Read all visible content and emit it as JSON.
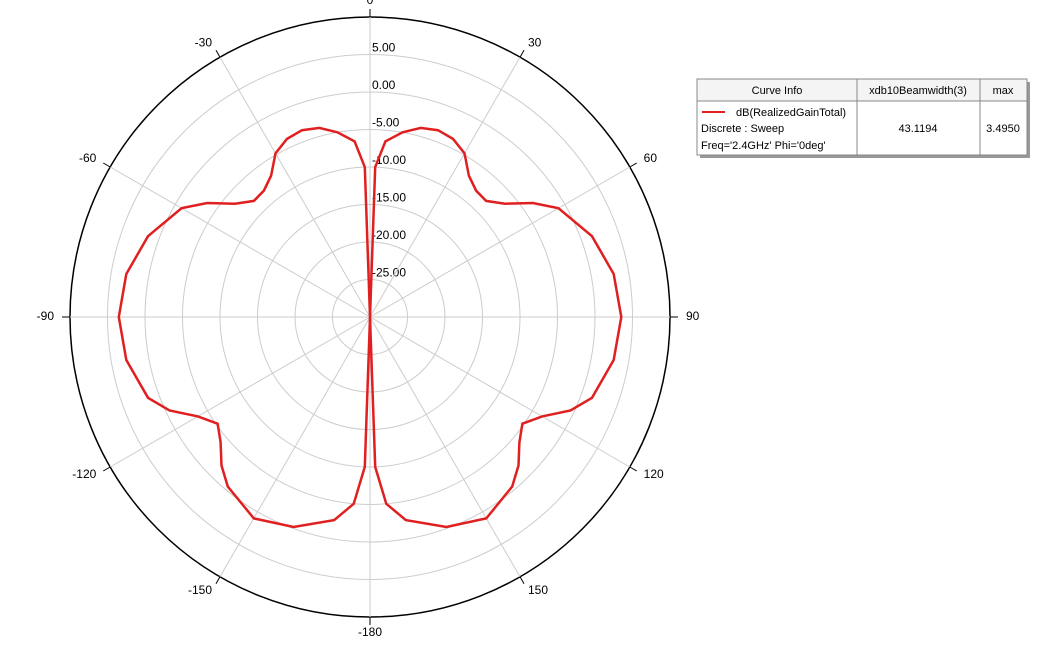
{
  "chart_data": {
    "type": "polar",
    "x": [
      -180,
      -178,
      -175,
      -170,
      -160,
      -150,
      -140,
      -135,
      -130,
      -125,
      -120,
      -115,
      -110,
      -100,
      -90,
      -80,
      -70,
      -60,
      -55,
      -50,
      -45,
      -40,
      -35,
      -30,
      -25,
      -20,
      -15,
      -10,
      -5,
      -2,
      0,
      2,
      5,
      10,
      15,
      20,
      25,
      30,
      35,
      40,
      45,
      50,
      55,
      60,
      70,
      80,
      90,
      100,
      110,
      115,
      120,
      125,
      130,
      135,
      140,
      150,
      160,
      170,
      175,
      178,
      180
    ],
    "series": [
      {
        "name": "dB(RealizedGainTotal)",
        "color": "#e02020",
        "values": [
          -30,
          -10,
          -5,
          -2.5,
          -0.2,
          1,
          -0.5,
          -2,
          -4,
          -5.2,
          -3.5,
          -0.5,
          1.5,
          3,
          3.5,
          3,
          1.5,
          -1,
          -3.5,
          -6.5,
          -8.1,
          -8,
          -7,
          -4.8,
          -3.8,
          -3.5,
          -3.9,
          -5,
          -6.5,
          -10,
          -30,
          -10,
          -6.5,
          -5,
          -3.9,
          -3.5,
          -3.8,
          -4.8,
          -7,
          -8,
          -8.1,
          -6.5,
          -3.5,
          -1,
          1.5,
          3,
          3.5,
          3,
          1.5,
          -0.5,
          -3.5,
          -5.2,
          -4,
          -2,
          -0.5,
          1,
          -0.2,
          -2.5,
          -5,
          -10,
          -30
        ]
      }
    ],
    "xticks": [
      0,
      30,
      60,
      90,
      120,
      150,
      -180,
      -150,
      -120,
      -90,
      -60,
      -30
    ],
    "ylim": [
      -30,
      10
    ],
    "yticks": [
      {
        "value": -25,
        "label": "-25.00"
      },
      {
        "value": -20,
        "label": "-20.00"
      },
      {
        "value": -15,
        "label": "-15.00"
      },
      {
        "value": -10,
        "label": "-10.00"
      },
      {
        "value": -5,
        "label": "-5.00"
      },
      {
        "value": 0,
        "label": "0.00"
      },
      {
        "value": 5,
        "label": "5.00"
      }
    ],
    "legend_table": {
      "header": [
        "Curve Info",
        "xdb10Beamwidth(3)",
        "max"
      ],
      "info": [
        "Discrete : Sweep",
        "Freq='2.4GHz' Phi='0deg'"
      ],
      "cells": [
        "43.1194",
        "3.4950"
      ]
    }
  }
}
